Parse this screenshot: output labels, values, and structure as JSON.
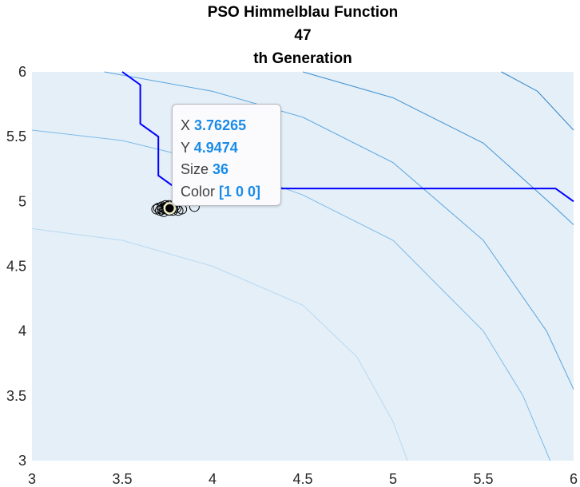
{
  "chart_data": {
    "type": "scatter",
    "title": [
      "PSO Himmelblau Function",
      "47",
      "th Generation"
    ],
    "xlabel": "",
    "ylabel": "",
    "xlim": [
      3,
      6
    ],
    "ylim": [
      3,
      6
    ],
    "x_ticks": [
      "3",
      "3.5",
      "4",
      "4.5",
      "5",
      "5.5",
      "6"
    ],
    "y_ticks": [
      "3",
      "3.5",
      "4",
      "4.5",
      "5",
      "5.5",
      "6"
    ],
    "grid": false,
    "background_fill": "#e4eff8",
    "contour_levels": [
      {
        "name": "level-1",
        "color": "#b9d9f1",
        "points": [
          [
            3.0,
            4.79
          ],
          [
            3.5,
            4.7
          ],
          [
            4.0,
            4.5
          ],
          [
            4.5,
            4.2
          ],
          [
            4.8,
            3.8
          ],
          [
            5.0,
            3.3
          ],
          [
            5.08,
            3.0
          ]
        ]
      },
      {
        "name": "level-2",
        "color": "#7fbbe8",
        "points": [
          [
            3.0,
            5.55
          ],
          [
            3.5,
            5.47
          ],
          [
            4.0,
            5.3
          ],
          [
            4.5,
            5.05
          ],
          [
            5.0,
            4.7
          ],
          [
            5.5,
            4.0
          ],
          [
            5.72,
            3.5
          ],
          [
            5.87,
            3.0
          ]
        ]
      },
      {
        "name": "level-3",
        "color": "#5aa5de",
        "points": [
          [
            3.4,
            6.0
          ],
          [
            4.0,
            5.85
          ],
          [
            4.5,
            5.65
          ],
          [
            5.0,
            5.3
          ],
          [
            5.5,
            4.7
          ],
          [
            5.85,
            4.0
          ],
          [
            6.0,
            3.55
          ]
        ]
      },
      {
        "name": "level-4",
        "color": "#3f92d4",
        "points": [
          [
            4.5,
            6.0
          ],
          [
            5.0,
            5.8
          ],
          [
            5.5,
            5.45
          ],
          [
            5.9,
            4.95
          ],
          [
            6.0,
            4.82
          ]
        ]
      },
      {
        "name": "level-5",
        "color": "#2a7fc4",
        "points": [
          [
            5.6,
            6.0
          ],
          [
            5.8,
            5.85
          ],
          [
            6.0,
            5.55
          ]
        ]
      }
    ],
    "best_path": {
      "color": "#0000ff",
      "points": [
        [
          3.5,
          6.0
        ],
        [
          3.6,
          5.9
        ],
        [
          3.6,
          5.6
        ],
        [
          3.7,
          5.5
        ],
        [
          3.7,
          5.2
        ],
        [
          3.8,
          5.1
        ],
        [
          5.9,
          5.1
        ],
        [
          6.0,
          5.0
        ]
      ]
    },
    "particles": {
      "marker": "circle",
      "edge_color": "#000000",
      "points": [
        [
          3.72,
          4.94
        ],
        [
          3.73,
          4.95
        ],
        [
          3.74,
          4.94
        ],
        [
          3.75,
          4.96
        ],
        [
          3.76,
          4.95
        ],
        [
          3.77,
          4.94
        ],
        [
          3.78,
          4.95
        ],
        [
          3.71,
          4.93
        ],
        [
          3.74,
          4.97
        ],
        [
          3.76,
          4.93
        ],
        [
          3.79,
          4.96
        ],
        [
          3.73,
          4.92
        ],
        [
          3.8,
          4.95
        ],
        [
          3.81,
          4.93
        ],
        [
          3.7,
          4.95
        ],
        [
          3.75,
          4.95
        ],
        [
          3.77,
          4.96
        ],
        [
          3.72,
          4.96
        ],
        [
          3.78,
          4.93
        ],
        [
          3.76,
          4.97
        ],
        [
          3.83,
          4.94
        ],
        [
          3.69,
          4.94
        ],
        [
          3.74,
          4.95
        ],
        [
          3.77,
          4.95
        ],
        [
          3.9,
          4.96
        ]
      ]
    },
    "selected_point": {
      "x": 3.76265,
      "y": 4.9474,
      "size": 36,
      "color": [
        1,
        0,
        0
      ]
    }
  },
  "tooltip": {
    "x_label": "X",
    "x_value": "3.76265",
    "y_label": "Y",
    "y_value": "4.9474",
    "size_label": "Size",
    "size_value": "36",
    "color_label": "Color",
    "color_value": "[1 0 0]"
  }
}
